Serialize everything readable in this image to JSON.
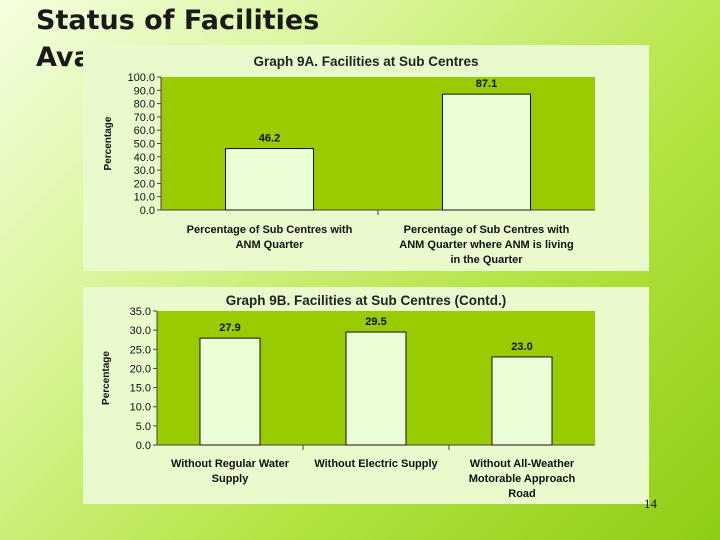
{
  "slide": {
    "title_line1": "Status of Facilities",
    "title_line2": "Availability",
    "page_number": "14"
  },
  "colors": {
    "plot_area": "#99cc00",
    "bar_fill": "#eaffd8",
    "panel_background": "#e9fbcd"
  },
  "chart_data": [
    {
      "type": "bar",
      "title": "Graph 9A. Facilities at Sub Centres",
      "ylabel": "Percentage",
      "xlabel": "",
      "ylim": [
        0,
        100
      ],
      "ytick_step": 10,
      "y_tick_decimals": 1,
      "grid": false,
      "categories": [
        [
          "Percentage of Sub Centres with",
          "ANM Quarter"
        ],
        [
          "Percentage of Sub Centres with",
          "ANM Quarter where ANM is living",
          "in the Quarter"
        ]
      ],
      "values": [
        46.2,
        87.1
      ],
      "data_labels": [
        "46.2",
        "87.1"
      ]
    },
    {
      "type": "bar",
      "title": "Graph 9B. Facilities at Sub Centres (Contd.)",
      "ylabel": "Percentage",
      "xlabel": "",
      "ylim": [
        0,
        35
      ],
      "ytick_step": 5,
      "y_tick_decimals": 1,
      "grid": false,
      "categories": [
        [
          "Without Regular Water",
          "Supply"
        ],
        [
          "Without Electric Supply"
        ],
        [
          "Without All-Weather",
          "Motorable Approach",
          "Road"
        ]
      ],
      "values": [
        27.9,
        29.5,
        23.0
      ],
      "data_labels": [
        "27.9",
        "29.5",
        "23.0"
      ]
    }
  ]
}
